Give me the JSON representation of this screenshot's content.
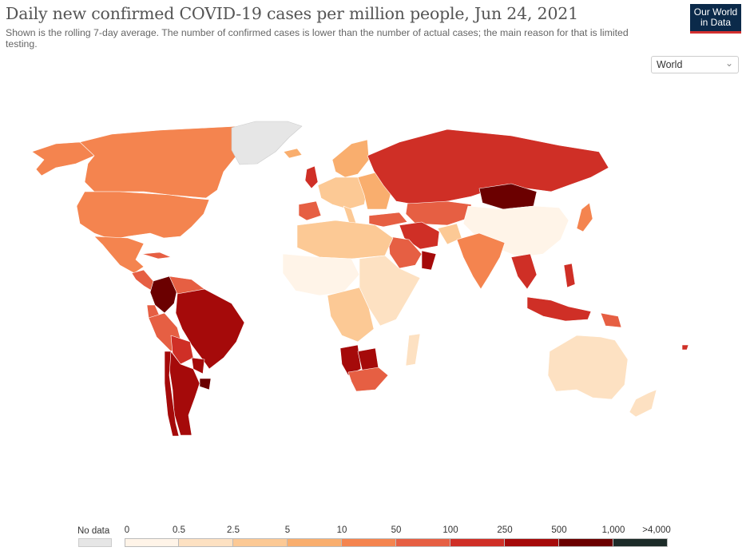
{
  "title": "Daily new confirmed COVID-19 cases per million people, Jun 24, 2021",
  "subtitle": "Shown is the rolling 7-day average. The number of confirmed cases is lower than the number of actual cases; the main reason for that is limited testing.",
  "logo": {
    "line1": "Our World",
    "line2": "in Data",
    "bg": "#0b2a4a",
    "accent": "#d32f2f"
  },
  "region_select": {
    "value": "World",
    "icon": "chevron-down-icon"
  },
  "legend": {
    "no_data_label": "No data",
    "no_data_color": "#e6e6e6",
    "ticks": [
      "0",
      "0.5",
      "2.5",
      "5",
      "10",
      "50",
      "100",
      "250",
      "500",
      "1,000",
      ">4,000"
    ],
    "colors": [
      "#fff4e8",
      "#fde1c2",
      "#fcc995",
      "#f9ae6e",
      "#f4844f",
      "#e65f43",
      "#cf2f26",
      "#a50a0a",
      "#6b0000",
      "#1c2b28"
    ]
  }
}
